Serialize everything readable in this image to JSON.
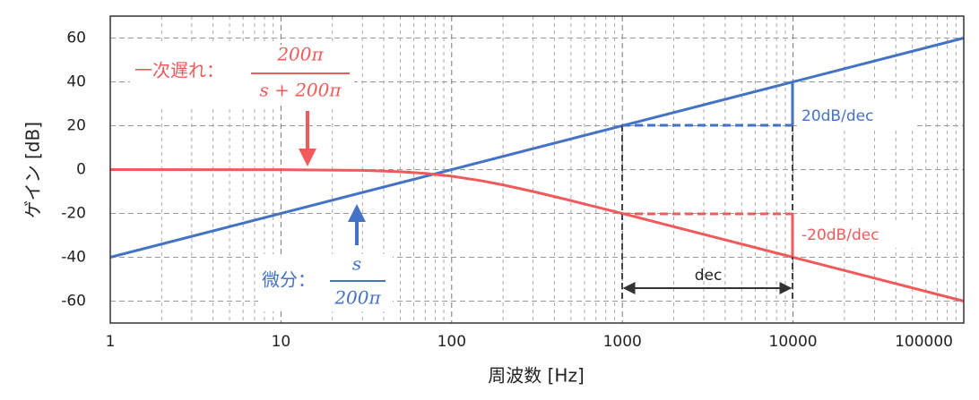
{
  "chart_data": {
    "type": "line",
    "x_label": "周波数 [Hz]",
    "y_label": "ゲイン [dB]",
    "series": [
      {
        "color": "#4472c4",
        "x": [
          1,
          100000
        ],
        "values": [
          -40,
          60
        ]
      },
      {
        "color": "#f05a5a",
        "x": [
          1,
          10,
          30,
          50,
          70,
          100,
          150,
          200,
          300,
          500,
          1000,
          10000,
          100000
        ],
        "values": [
          0,
          -0.04,
          -0.38,
          -0.97,
          -1.73,
          -3.01,
          -5.12,
          -6.99,
          -10,
          -14.15,
          -20.04,
          -40,
          -60
        ]
      }
    ],
    "xlim": [
      1,
      100000
    ],
    "xticks": [
      1,
      10,
      100,
      1000,
      10000,
      100000
    ],
    "xscale": "log",
    "ylim": [
      -70,
      70
    ],
    "yticks": [
      -60,
      -40,
      -20,
      0,
      20,
      40,
      60
    ],
    "grid": true,
    "annotations": {
      "lag_label": "一次遅れ：",
      "lag_num": "200π",
      "lag_den": "s + 200π",
      "diff_label": "微分：",
      "diff_num": "s",
      "diff_den": "200π",
      "slope_up": "20dB/dec",
      "slope_down": "-20dB/dec",
      "decade": "dec"
    }
  }
}
